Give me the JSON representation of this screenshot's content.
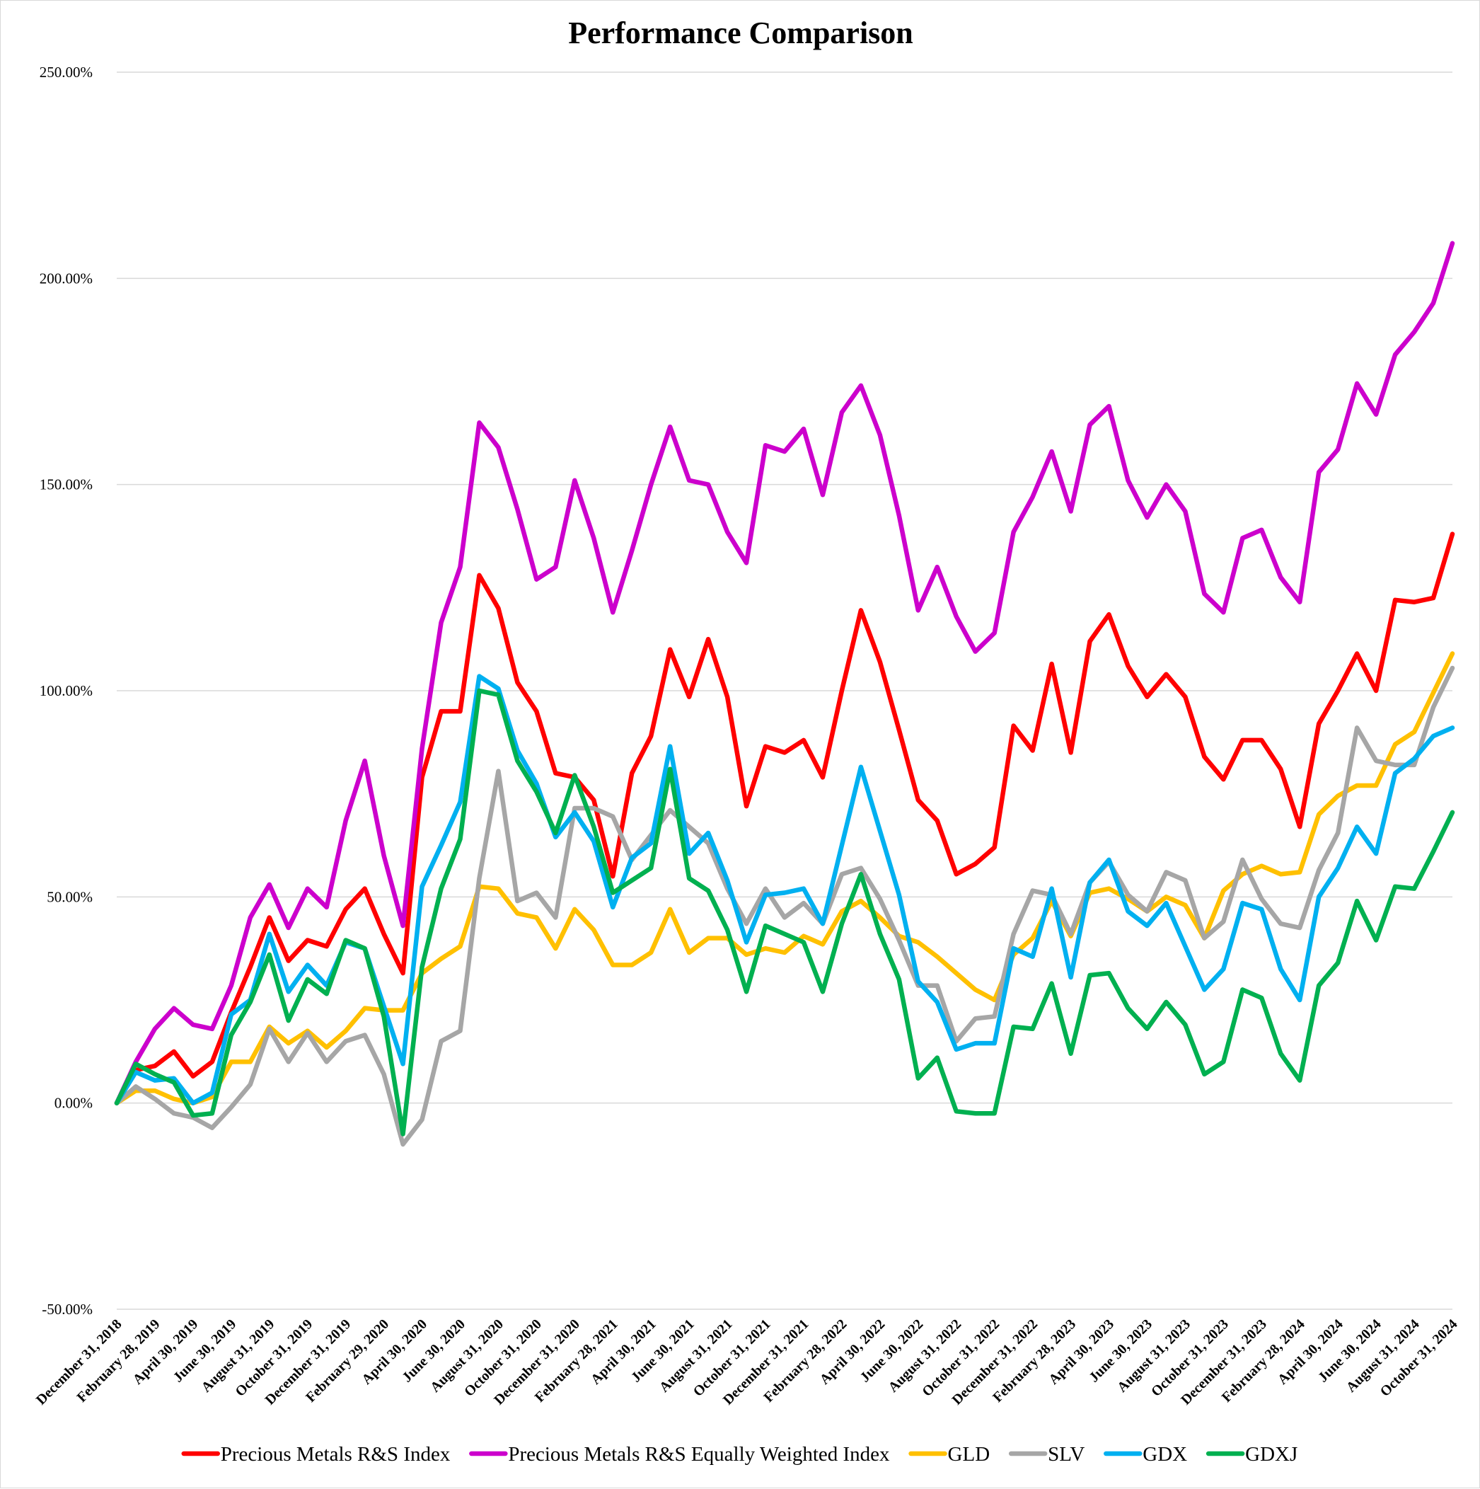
{
  "chart_data": {
    "type": "line",
    "title": "Performance Comparison",
    "xlabel": "",
    "ylabel": "",
    "ylim": [
      -50,
      250
    ],
    "yticks": [
      "250.00%",
      "200.00%",
      "150.00%",
      "100.00%",
      "50.00%",
      "0.00%",
      "-50.00%"
    ],
    "ytick_values": [
      250,
      200,
      150,
      100,
      50,
      0,
      -50
    ],
    "grid": true,
    "legend_position": "bottom",
    "x": [
      "December 31, 2018",
      "January 31, 2019",
      "February 28, 2019",
      "March 31, 2019",
      "April 30, 2019",
      "May 31, 2019",
      "June 30, 2019",
      "July 31, 2019",
      "August 31, 2019",
      "September 30, 2019",
      "October 31, 2019",
      "November 30, 2019",
      "December 31, 2019",
      "January 31, 2020",
      "February 29, 2020",
      "March 31, 2020",
      "April 30, 2020",
      "May 31, 2020",
      "June 30, 2020",
      "July 31, 2020",
      "August 31, 2020",
      "September 30, 2020",
      "October 31, 2020",
      "November 30, 2020",
      "December 31, 2020",
      "January 31, 2021",
      "February 28, 2021",
      "March 31, 2021",
      "April 30, 2021",
      "May 31, 2021",
      "June 30, 2021",
      "July 31, 2021",
      "August 31, 2021",
      "September 30, 2021",
      "October 31, 2021",
      "November 30, 2021",
      "December 31, 2021",
      "January 31, 2022",
      "February 28, 2022",
      "March 31, 2022",
      "April 30, 2022",
      "May 31, 2022",
      "June 30, 2022",
      "July 31, 2022",
      "August 31, 2022",
      "September 30, 2022",
      "October 31, 2022",
      "November 30, 2022",
      "December 31, 2022",
      "January 31, 2023",
      "February 28, 2023",
      "March 31, 2023",
      "April 30, 2023",
      "May 31, 2023",
      "June 30, 2023",
      "July 31, 2023",
      "August 31, 2023",
      "September 30, 2023",
      "October 31, 2023",
      "November 30, 2023",
      "December 31, 2023",
      "January 31, 2024",
      "February 28, 2024",
      "March 31, 2024",
      "April 30, 2024",
      "May 31, 2024",
      "June 30, 2024",
      "July 31, 2024",
      "August 31, 2024",
      "September 30, 2024",
      "October 31, 2024"
    ],
    "xtick_labels": [
      "December 31, 2018",
      "February 28, 2019",
      "April 30, 2019",
      "June 30, 2019",
      "August 31, 2019",
      "October 31, 2019",
      "December 31, 2019",
      "February 29, 2020",
      "April 30, 2020",
      "June 30, 2020",
      "August 31, 2020",
      "October 31, 2020",
      "December 31, 2020",
      "February 28, 2021",
      "April 30, 2021",
      "June 30, 2021",
      "August 31, 2021",
      "October 31, 2021",
      "December 31, 2021",
      "February 28, 2022",
      "April 30, 2022",
      "June 30, 2022",
      "August 31, 2022",
      "October 31, 2022",
      "December 31, 2022",
      "February 28, 2023",
      "April 30, 2023",
      "June 30, 2023",
      "August 31, 2023",
      "October 31, 2023",
      "December 31, 2023",
      "February 28, 2024",
      "April 30, 2024",
      "June 30, 2024",
      "August 31, 2024",
      "October 31, 2024"
    ],
    "series": [
      {
        "name": "Precious Metals R&S Index",
        "color": "#FF0000",
        "values": [
          0,
          8,
          9,
          12.5,
          6.5,
          10,
          22,
          33,
          45,
          34.5,
          39.5,
          38,
          47,
          52,
          41,
          31.5,
          79,
          95,
          95,
          128,
          120,
          102,
          95,
          80,
          79,
          73.5,
          55,
          80,
          89,
          110,
          98.5,
          112.5,
          98.5,
          72,
          86.5,
          85,
          88,
          79,
          100,
          119.5,
          107,
          90.5,
          73.5,
          68.5,
          55.5,
          58,
          62,
          91.5,
          85.5,
          106.5,
          85,
          112,
          118.5,
          106,
          98.5,
          104,
          98.5,
          84,
          78.5,
          88,
          88,
          81,
          67,
          92,
          100,
          109,
          100,
          122,
          121.5,
          122.5,
          138
        ]
      },
      {
        "name": "Precious Metals R&S Equally Weighted Index",
        "color": "#CC00CC",
        "values": [
          0,
          10,
          18,
          23,
          19,
          18,
          28.5,
          45,
          53,
          42.5,
          52,
          47.5,
          68.5,
          83,
          60,
          43,
          86,
          116.5,
          130,
          165,
          159,
          144,
          127,
          130,
          151,
          137,
          119,
          134,
          150,
          164,
          151,
          150,
          138.5,
          131,
          159.5,
          158,
          163.5,
          147.5,
          167.5,
          174,
          162,
          142.5,
          119.5,
          130,
          118,
          109.5,
          114,
          138.5,
          147,
          158,
          143.5,
          164.5,
          169,
          151,
          142,
          150,
          143.5,
          123.5,
          119,
          137,
          139,
          127.5,
          121.5,
          153,
          158.5,
          174.5,
          167,
          181.5,
          187,
          194,
          208.5
        ]
      },
      {
        "name": "GLD",
        "color": "#FFC000",
        "values": [
          0,
          3,
          3,
          1,
          0,
          1.5,
          10,
          10,
          18.5,
          14.5,
          17.5,
          13.5,
          17.5,
          23,
          22.5,
          22.5,
          31.5,
          35,
          38,
          52.5,
          52,
          46,
          45,
          37.5,
          47,
          42,
          33.5,
          33.5,
          36.5,
          47,
          36.5,
          40,
          40,
          36,
          37.5,
          36.5,
          40.5,
          38.5,
          46.5,
          49,
          45,
          40.5,
          39,
          35.5,
          31.5,
          27.5,
          25,
          36,
          40,
          49,
          40.5,
          51,
          52,
          49.5,
          46.5,
          50,
          48,
          40,
          51.5,
          55.5,
          57.5,
          55.5,
          56,
          70,
          74.5,
          77,
          77,
          87,
          90,
          99.5,
          109
        ]
      },
      {
        "name": "SLV",
        "color": "#A6A6A6",
        "values": [
          0,
          4,
          1,
          -2.5,
          -3.5,
          -6,
          -1,
          4.5,
          18,
          10,
          17,
          10,
          15,
          16.5,
          7,
          -10,
          -4,
          15,
          17.5,
          54.5,
          80.5,
          49,
          51,
          45,
          71.5,
          71.5,
          69.5,
          59,
          65,
          71,
          67,
          63,
          52,
          43.5,
          52,
          45,
          48.5,
          43.5,
          55.5,
          57,
          49.5,
          39.5,
          28.5,
          28.5,
          15,
          20.5,
          21,
          41,
          51.5,
          50.5,
          41,
          53.5,
          58.5,
          50.5,
          46.5,
          56,
          54,
          40,
          44,
          59,
          49.5,
          43.5,
          42.5,
          56.5,
          65.5,
          91,
          83,
          82,
          82,
          96,
          105.5
        ]
      },
      {
        "name": "GDX",
        "color": "#00B0F0",
        "values": [
          0,
          7.5,
          5.5,
          6,
          0,
          2.5,
          21.5,
          25,
          41,
          27,
          33.5,
          28.5,
          39,
          37.5,
          23.5,
          9.5,
          52.5,
          62.5,
          73,
          103.5,
          100.5,
          85.5,
          77.5,
          64.5,
          70.5,
          63.5,
          47.5,
          59.5,
          63,
          86.5,
          60.5,
          65.5,
          54,
          39,
          50.5,
          51,
          52,
          43.5,
          62.5,
          81.5,
          66,
          50.5,
          29.5,
          24.5,
          13,
          14.5,
          14.5,
          37.5,
          35.5,
          52,
          30.5,
          53.5,
          59,
          46.5,
          43,
          48.5,
          38,
          27.5,
          32.5,
          48.5,
          47,
          32.5,
          25,
          50,
          57,
          67,
          60.5,
          80,
          83.5,
          89,
          91
        ]
      },
      {
        "name": "GDXJ",
        "color": "#00B050",
        "values": [
          0,
          9.5,
          7,
          5,
          -3,
          -2.5,
          16.5,
          24.5,
          36,
          20,
          30,
          26.5,
          39.5,
          37.5,
          21,
          -7.5,
          33,
          52,
          64,
          100,
          99,
          83,
          75.5,
          65.5,
          79.5,
          67,
          51,
          54,
          57,
          81,
          54.5,
          51.5,
          42,
          27,
          43,
          41,
          39,
          27,
          43.5,
          55.5,
          41,
          30,
          6,
          11,
          -2,
          -2.5,
          -2.5,
          18.5,
          18,
          29,
          12,
          31,
          31.5,
          23,
          18,
          24.5,
          19,
          7,
          10,
          27.5,
          25.5,
          12,
          5.5,
          28.5,
          34,
          49,
          39.5,
          52.5,
          52,
          61,
          70.5
        ]
      }
    ]
  }
}
